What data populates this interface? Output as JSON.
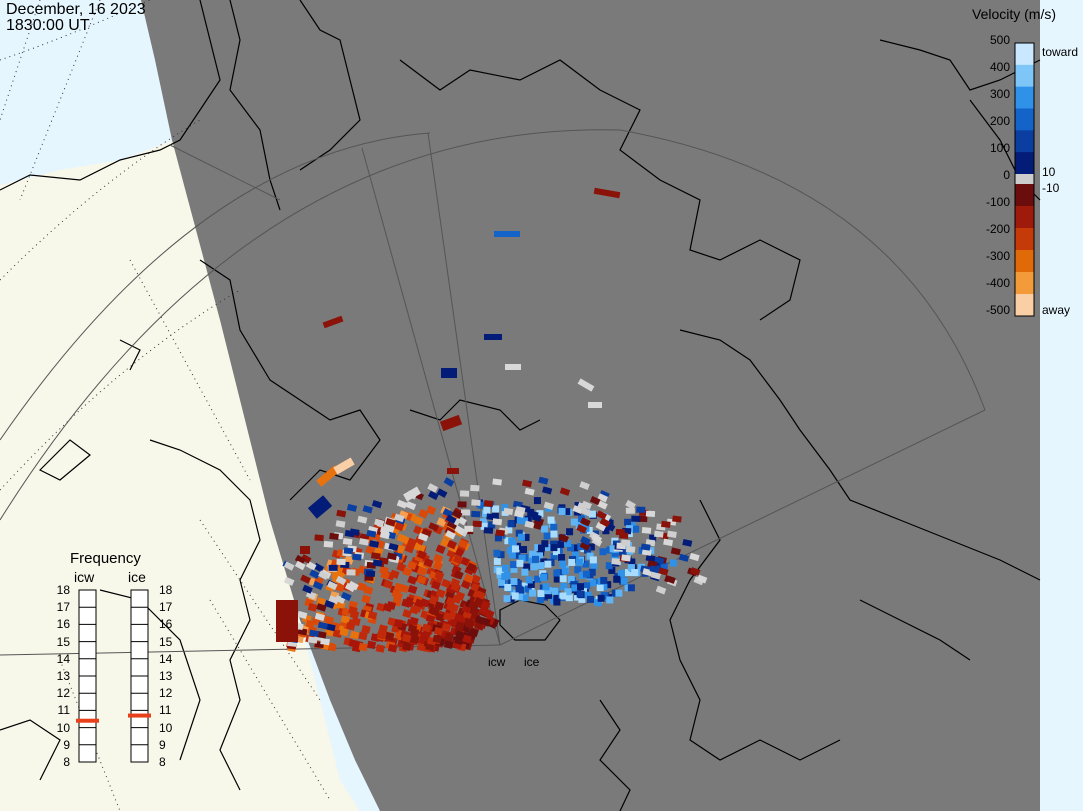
{
  "header": {
    "date": "December, 16 2023",
    "time": "1830:00 UT"
  },
  "velocity_scale": {
    "title": "Velocity (m/s)",
    "ticks": [
      "500",
      "400",
      "300",
      "200",
      "100",
      "10",
      "0",
      "-10",
      "-100",
      "-200",
      "-300",
      "-400",
      "-500"
    ],
    "toward_label": "toward",
    "away_label": "away",
    "colors": [
      "#c9e8ff",
      "#7ec6f8",
      "#2f92e8",
      "#1463c8",
      "#0a3ea0",
      "#031c78",
      "#6b0d0d",
      "#9e1a0a",
      "#c43a08",
      "#e06a08",
      "#f39a3a",
      "#fbcfa6"
    ]
  },
  "frequency_panel": {
    "title": "Frequency",
    "radars": [
      {
        "code": "icw",
        "current_mhz": 10.4
      },
      {
        "code": "ice",
        "current_mhz": 10.7
      }
    ],
    "ticks": [
      "18",
      "17",
      "16",
      "15",
      "14",
      "13",
      "12",
      "11",
      "10",
      "9",
      "8"
    ],
    "marker_color": "#e8401a"
  },
  "radar_sites": [
    "icw",
    "ice"
  ],
  "colors": {
    "night_shade": "#7a7a7a",
    "day_ocean": "#e6f6ff",
    "day_land": "#f7f7ea",
    "coastline": "#000000",
    "grid": "#5a5a5a"
  }
}
